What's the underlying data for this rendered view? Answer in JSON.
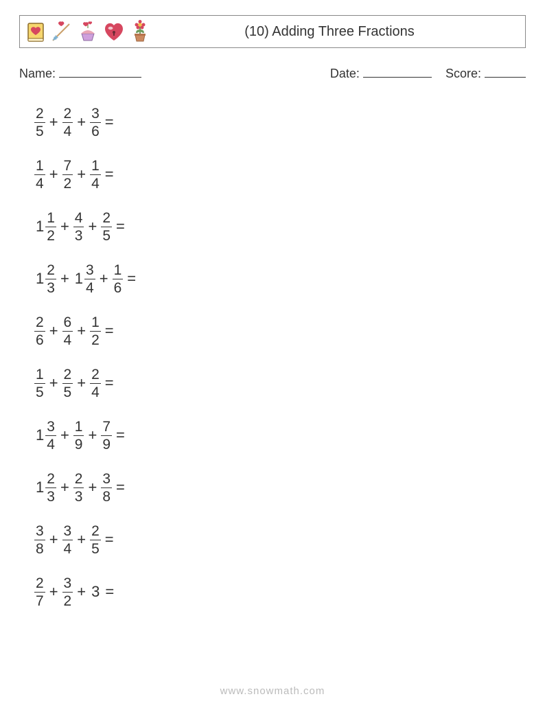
{
  "header": {
    "title": "(10) Adding Three Fractions",
    "icons": [
      "book-heart-icon",
      "cupid-arrow-icon",
      "cupcake-hearts-icon",
      "heart-lock-icon",
      "flower-pot-icon"
    ]
  },
  "labels": {
    "name": "Name:",
    "date": "Date:",
    "score": "Score:"
  },
  "footer": "www.snowmath.com",
  "op_plus": "+",
  "op_eq": "=",
  "problems": [
    {
      "terms": [
        {
          "n": "2",
          "d": "5"
        },
        {
          "n": "2",
          "d": "4"
        },
        {
          "n": "3",
          "d": "6"
        }
      ]
    },
    {
      "terms": [
        {
          "n": "1",
          "d": "4"
        },
        {
          "n": "7",
          "d": "2"
        },
        {
          "n": "1",
          "d": "4"
        }
      ]
    },
    {
      "terms": [
        {
          "w": "1",
          "n": "1",
          "d": "2"
        },
        {
          "n": "4",
          "d": "3"
        },
        {
          "n": "2",
          "d": "5"
        }
      ]
    },
    {
      "terms": [
        {
          "w": "1",
          "n": "2",
          "d": "3"
        },
        {
          "w": "1",
          "n": "3",
          "d": "4"
        },
        {
          "n": "1",
          "d": "6"
        }
      ]
    },
    {
      "terms": [
        {
          "n": "2",
          "d": "6"
        },
        {
          "n": "6",
          "d": "4"
        },
        {
          "n": "1",
          "d": "2"
        }
      ]
    },
    {
      "terms": [
        {
          "n": "1",
          "d": "5"
        },
        {
          "n": "2",
          "d": "5"
        },
        {
          "n": "2",
          "d": "4"
        }
      ]
    },
    {
      "terms": [
        {
          "w": "1",
          "n": "3",
          "d": "4"
        },
        {
          "n": "1",
          "d": "9"
        },
        {
          "n": "7",
          "d": "9"
        }
      ]
    },
    {
      "terms": [
        {
          "w": "1",
          "n": "2",
          "d": "3"
        },
        {
          "n": "2",
          "d": "3"
        },
        {
          "n": "3",
          "d": "8"
        }
      ]
    },
    {
      "terms": [
        {
          "n": "3",
          "d": "8"
        },
        {
          "n": "3",
          "d": "4"
        },
        {
          "n": "2",
          "d": "5"
        }
      ]
    },
    {
      "terms": [
        {
          "n": "2",
          "d": "7"
        },
        {
          "n": "3",
          "d": "2"
        },
        {
          "w": "3"
        }
      ]
    }
  ],
  "icon_colors": {
    "book": {
      "body": "#f6d66e",
      "outline": "#8c6b2a",
      "heart": "#d6475f"
    },
    "arrow": {
      "stick": "#caa06a",
      "heart": "#d6475f",
      "feather": "#7fb1cf"
    },
    "cupcake": {
      "cup": "#cfa0dd",
      "frost": "#e9a6b6",
      "hearts": "#d6475f",
      "stick": "#8fa66b"
    },
    "heartlock": {
      "heart": "#d6475f",
      "shine": "#ffffff",
      "key": "#caa06a"
    },
    "flower": {
      "pot": "#cc8a60",
      "stem": "#6e9b5d",
      "petal": "#d6475f",
      "center": "#f4c14a"
    }
  }
}
